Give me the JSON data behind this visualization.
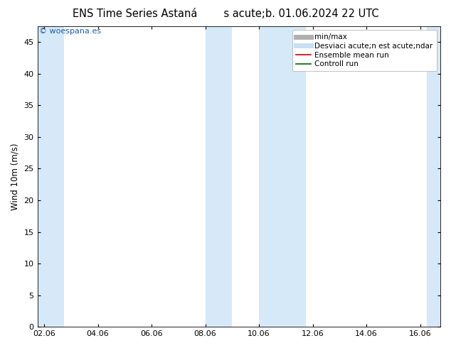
{
  "title_left": "ENS Time Series Astaná",
  "title_right": "s acute;b. 01.06.2024 22 UTC",
  "ylabel": "Wind 10m (m/s)",
  "watermark": "© woespana.es",
  "watermark_color": "#1a5fa8",
  "bg_color": "#ffffff",
  "plot_bg_color": "#ffffff",
  "band_color": "#d6e9f8",
  "ylim": [
    0,
    47.5
  ],
  "yticks": [
    0,
    5,
    10,
    15,
    20,
    25,
    30,
    35,
    40,
    45
  ],
  "xtick_labels": [
    "02.06",
    "04.06",
    "06.06",
    "08.06",
    "10.06",
    "12.06",
    "14.06",
    "16.06"
  ],
  "xtick_positions": [
    0,
    2,
    4,
    6,
    8,
    10,
    12,
    14
  ],
  "xmin": -0.25,
  "xmax": 14.75,
  "blue_bands": [
    [
      -0.25,
      0.75
    ],
    [
      6.0,
      7.0
    ],
    [
      8.0,
      9.75
    ],
    [
      14.25,
      14.75
    ]
  ],
  "legend_entries": [
    {
      "label": "min/max",
      "color": "#b0b0b0",
      "lw": 5,
      "linestyle": "-"
    },
    {
      "label": "Desviaci acute;n est acute;ndar",
      "color": "#c8dff5",
      "lw": 5,
      "linestyle": "-"
    },
    {
      "label": "Ensemble mean run",
      "color": "#cc0000",
      "lw": 1.2,
      "linestyle": "-"
    },
    {
      "label": "Controll run",
      "color": "#006600",
      "lw": 1.2,
      "linestyle": "-"
    }
  ],
  "font_size_title": 10.5,
  "font_size_axis": 8.5,
  "font_size_tick": 8,
  "font_size_legend": 7.5,
  "font_size_watermark": 8
}
